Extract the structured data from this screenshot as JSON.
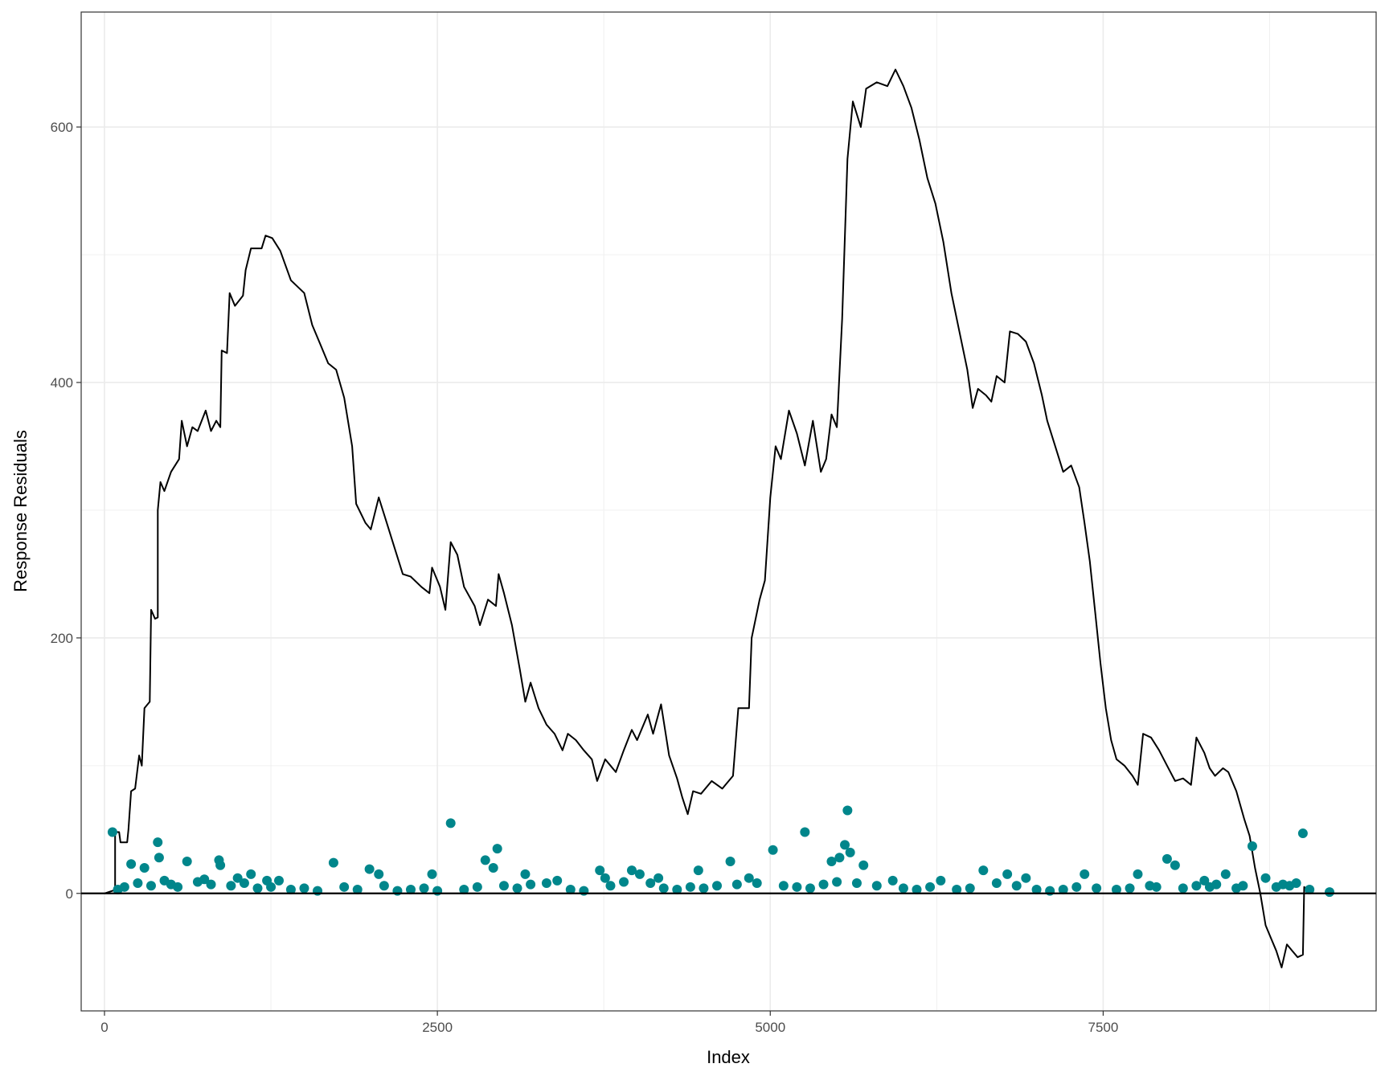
{
  "chart_data": {
    "type": "line",
    "title": "",
    "xlabel": "Index",
    "ylabel": "Response Residuals",
    "xlim": [
      -175,
      9550
    ],
    "ylim": [
      -92,
      690
    ],
    "x_ticks": [
      0,
      2500,
      5000,
      7500
    ],
    "x_tick_labels": [
      "0",
      "2500",
      "5000",
      "7500"
    ],
    "y_ticks": [
      0,
      200,
      400,
      600
    ],
    "y_tick_labels": [
      "0",
      "200",
      "400",
      "600"
    ],
    "grid": true,
    "legend": "none",
    "reference_line": {
      "y": 0,
      "color": "#000000"
    },
    "series": [
      {
        "type": "line",
        "color": "#000000",
        "points": [
          [
            0,
            0
          ],
          [
            60,
            2
          ],
          [
            80,
            3
          ],
          [
            80,
            48
          ],
          [
            110,
            48
          ],
          [
            120,
            40
          ],
          [
            170,
            40
          ],
          [
            180,
            50
          ],
          [
            200,
            80
          ],
          [
            230,
            82
          ],
          [
            260,
            108
          ],
          [
            280,
            100
          ],
          [
            300,
            145
          ],
          [
            340,
            150
          ],
          [
            350,
            222
          ],
          [
            380,
            215
          ],
          [
            400,
            216
          ],
          [
            400,
            300
          ],
          [
            420,
            322
          ],
          [
            450,
            315
          ],
          [
            500,
            330
          ],
          [
            560,
            340
          ],
          [
            580,
            370
          ],
          [
            620,
            350
          ],
          [
            660,
            365
          ],
          [
            700,
            362
          ],
          [
            760,
            378
          ],
          [
            800,
            362
          ],
          [
            840,
            370
          ],
          [
            870,
            365
          ],
          [
            880,
            425
          ],
          [
            920,
            423
          ],
          [
            940,
            470
          ],
          [
            980,
            460
          ],
          [
            1040,
            468
          ],
          [
            1060,
            488
          ],
          [
            1100,
            505
          ],
          [
            1180,
            505
          ],
          [
            1210,
            515
          ],
          [
            1260,
            513
          ],
          [
            1320,
            503
          ],
          [
            1400,
            480
          ],
          [
            1500,
            470
          ],
          [
            1560,
            445
          ],
          [
            1620,
            430
          ],
          [
            1680,
            415
          ],
          [
            1740,
            410
          ],
          [
            1800,
            388
          ],
          [
            1860,
            350
          ],
          [
            1890,
            305
          ],
          [
            1960,
            290
          ],
          [
            2000,
            285
          ],
          [
            2060,
            310
          ],
          [
            2120,
            290
          ],
          [
            2180,
            270
          ],
          [
            2240,
            250
          ],
          [
            2300,
            248
          ],
          [
            2380,
            240
          ],
          [
            2440,
            235
          ],
          [
            2460,
            255
          ],
          [
            2520,
            240
          ],
          [
            2560,
            222
          ],
          [
            2600,
            275
          ],
          [
            2650,
            265
          ],
          [
            2700,
            240
          ],
          [
            2780,
            225
          ],
          [
            2820,
            210
          ],
          [
            2880,
            230
          ],
          [
            2940,
            225
          ],
          [
            2960,
            250
          ],
          [
            3000,
            235
          ],
          [
            3060,
            210
          ],
          [
            3120,
            175
          ],
          [
            3160,
            150
          ],
          [
            3200,
            165
          ],
          [
            3260,
            145
          ],
          [
            3320,
            132
          ],
          [
            3380,
            125
          ],
          [
            3440,
            112
          ],
          [
            3480,
            125
          ],
          [
            3540,
            120
          ],
          [
            3600,
            112
          ],
          [
            3660,
            105
          ],
          [
            3700,
            88
          ],
          [
            3760,
            105
          ],
          [
            3800,
            100
          ],
          [
            3840,
            95
          ],
          [
            3900,
            112
          ],
          [
            3960,
            128
          ],
          [
            4000,
            120
          ],
          [
            4080,
            140
          ],
          [
            4120,
            125
          ],
          [
            4180,
            148
          ],
          [
            4240,
            108
          ],
          [
            4300,
            90
          ],
          [
            4340,
            75
          ],
          [
            4380,
            62
          ],
          [
            4420,
            80
          ],
          [
            4480,
            78
          ],
          [
            4560,
            88
          ],
          [
            4640,
            82
          ],
          [
            4720,
            92
          ],
          [
            4760,
            145
          ],
          [
            4840,
            145
          ],
          [
            4860,
            200
          ],
          [
            4920,
            230
          ],
          [
            4960,
            245
          ],
          [
            5000,
            310
          ],
          [
            5040,
            350
          ],
          [
            5080,
            340
          ],
          [
            5140,
            378
          ],
          [
            5200,
            360
          ],
          [
            5260,
            335
          ],
          [
            5320,
            370
          ],
          [
            5380,
            330
          ],
          [
            5420,
            340
          ],
          [
            5460,
            375
          ],
          [
            5500,
            365
          ],
          [
            5540,
            450
          ],
          [
            5580,
            575
          ],
          [
            5620,
            620
          ],
          [
            5680,
            600
          ],
          [
            5720,
            630
          ],
          [
            5800,
            635
          ],
          [
            5880,
            632
          ],
          [
            5940,
            645
          ],
          [
            6000,
            632
          ],
          [
            6060,
            615
          ],
          [
            6120,
            590
          ],
          [
            6180,
            560
          ],
          [
            6240,
            540
          ],
          [
            6300,
            510
          ],
          [
            6360,
            470
          ],
          [
            6420,
            440
          ],
          [
            6480,
            410
          ],
          [
            6520,
            380
          ],
          [
            6560,
            395
          ],
          [
            6620,
            390
          ],
          [
            6660,
            385
          ],
          [
            6700,
            405
          ],
          [
            6760,
            400
          ],
          [
            6800,
            440
          ],
          [
            6860,
            438
          ],
          [
            6920,
            432
          ],
          [
            6980,
            415
          ],
          [
            7040,
            390
          ],
          [
            7080,
            370
          ],
          [
            7140,
            350
          ],
          [
            7200,
            330
          ],
          [
            7260,
            335
          ],
          [
            7320,
            318
          ],
          [
            7360,
            290
          ],
          [
            7400,
            260
          ],
          [
            7440,
            220
          ],
          [
            7480,
            180
          ],
          [
            7520,
            145
          ],
          [
            7560,
            120
          ],
          [
            7600,
            105
          ],
          [
            7660,
            100
          ],
          [
            7720,
            92
          ],
          [
            7760,
            85
          ],
          [
            7800,
            125
          ],
          [
            7860,
            122
          ],
          [
            7920,
            112
          ],
          [
            7980,
            100
          ],
          [
            8040,
            88
          ],
          [
            8100,
            90
          ],
          [
            8160,
            85
          ],
          [
            8200,
            122
          ],
          [
            8260,
            110
          ],
          [
            8300,
            98
          ],
          [
            8340,
            92
          ],
          [
            8400,
            98
          ],
          [
            8440,
            95
          ],
          [
            8500,
            80
          ],
          [
            8560,
            58
          ],
          [
            8600,
            45
          ],
          [
            8640,
            20
          ],
          [
            8680,
            0
          ],
          [
            8720,
            -25
          ],
          [
            8760,
            -35
          ],
          [
            8800,
            -45
          ],
          [
            8840,
            -58
          ],
          [
            8880,
            -40
          ],
          [
            8920,
            -45
          ],
          [
            8960,
            -50
          ],
          [
            9000,
            -48
          ],
          [
            9010,
            5
          ],
          [
            9060,
            0
          ]
        ]
      },
      {
        "type": "scatter",
        "color": "#00868b",
        "points": [
          [
            60,
            48
          ],
          [
            200,
            23
          ],
          [
            300,
            20
          ],
          [
            400,
            40
          ],
          [
            410,
            28
          ],
          [
            620,
            25
          ],
          [
            860,
            26
          ],
          [
            870,
            22
          ],
          [
            1000,
            12
          ],
          [
            1100,
            15
          ],
          [
            1220,
            10
          ],
          [
            1310,
            10
          ],
          [
            1720,
            24
          ],
          [
            1990,
            19
          ],
          [
            2060,
            15
          ],
          [
            2460,
            15
          ],
          [
            2600,
            55
          ],
          [
            2860,
            26
          ],
          [
            2920,
            20
          ],
          [
            2950,
            35
          ],
          [
            3160,
            15
          ],
          [
            3320,
            8
          ],
          [
            3400,
            10
          ],
          [
            3720,
            18
          ],
          [
            3760,
            12
          ],
          [
            3960,
            18
          ],
          [
            4020,
            15
          ],
          [
            4160,
            12
          ],
          [
            4460,
            18
          ],
          [
            4700,
            25
          ],
          [
            4840,
            12
          ],
          [
            5020,
            34
          ],
          [
            5260,
            48
          ],
          [
            5460,
            25
          ],
          [
            5520,
            28
          ],
          [
            5560,
            38
          ],
          [
            5580,
            65
          ],
          [
            5600,
            32
          ],
          [
            5700,
            22
          ],
          [
            5920,
            10
          ],
          [
            6280,
            10
          ],
          [
            6600,
            18
          ],
          [
            6780,
            15
          ],
          [
            6920,
            12
          ],
          [
            7360,
            15
          ],
          [
            7760,
            15
          ],
          [
            7980,
            27
          ],
          [
            8040,
            22
          ],
          [
            8260,
            10
          ],
          [
            8420,
            15
          ],
          [
            8620,
            37
          ],
          [
            8720,
            12
          ],
          [
            9000,
            47
          ],
          [
            100,
            3
          ],
          [
            150,
            5
          ],
          [
            250,
            8
          ],
          [
            350,
            6
          ],
          [
            450,
            10
          ],
          [
            500,
            7
          ],
          [
            550,
            5
          ],
          [
            700,
            9
          ],
          [
            750,
            11
          ],
          [
            800,
            7
          ],
          [
            950,
            6
          ],
          [
            1050,
            8
          ],
          [
            1150,
            4
          ],
          [
            1250,
            5
          ],
          [
            1400,
            3
          ],
          [
            1500,
            4
          ],
          [
            1600,
            2
          ],
          [
            1800,
            5
          ],
          [
            1900,
            3
          ],
          [
            2100,
            6
          ],
          [
            2200,
            2
          ],
          [
            2300,
            3
          ],
          [
            2400,
            4
          ],
          [
            2500,
            2
          ],
          [
            2700,
            3
          ],
          [
            2800,
            5
          ],
          [
            3000,
            6
          ],
          [
            3100,
            4
          ],
          [
            3200,
            7
          ],
          [
            3500,
            3
          ],
          [
            3600,
            2
          ],
          [
            3800,
            6
          ],
          [
            3900,
            9
          ],
          [
            4100,
            8
          ],
          [
            4200,
            4
          ],
          [
            4300,
            3
          ],
          [
            4400,
            5
          ],
          [
            4500,
            4
          ],
          [
            4600,
            6
          ],
          [
            4750,
            7
          ],
          [
            4900,
            8
          ],
          [
            5100,
            6
          ],
          [
            5200,
            5
          ],
          [
            5300,
            4
          ],
          [
            5400,
            7
          ],
          [
            5500,
            9
          ],
          [
            5650,
            8
          ],
          [
            5800,
            6
          ],
          [
            6000,
            4
          ],
          [
            6100,
            3
          ],
          [
            6200,
            5
          ],
          [
            6400,
            3
          ],
          [
            6500,
            4
          ],
          [
            6700,
            8
          ],
          [
            6850,
            6
          ],
          [
            7000,
            3
          ],
          [
            7100,
            2
          ],
          [
            7200,
            3
          ],
          [
            7300,
            5
          ],
          [
            7450,
            4
          ],
          [
            7600,
            3
          ],
          [
            7700,
            4
          ],
          [
            7850,
            6
          ],
          [
            7900,
            5
          ],
          [
            8100,
            4
          ],
          [
            8200,
            6
          ],
          [
            8300,
            5
          ],
          [
            8350,
            7
          ],
          [
            8500,
            4
          ],
          [
            8550,
            6
          ],
          [
            8800,
            5
          ],
          [
            8850,
            7
          ],
          [
            8900,
            6
          ],
          [
            8950,
            8
          ],
          [
            9050,
            3
          ],
          [
            9200,
            1
          ]
        ]
      }
    ]
  }
}
